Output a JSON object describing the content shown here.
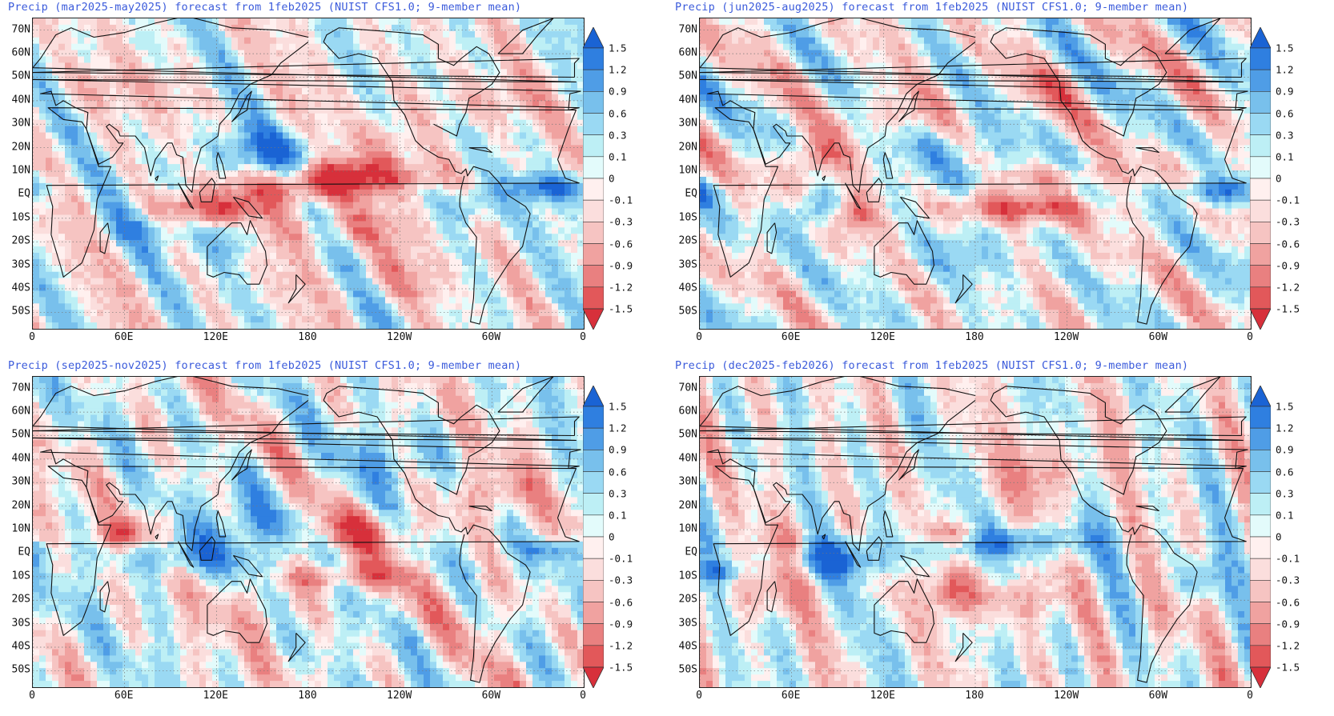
{
  "panels": [
    {
      "id": "mam",
      "title": "Precip (mar2025-may2025) forecast from 1feb2025 (NUIST CFS1.0; 9-member mean)",
      "seed": 11,
      "features": [
        {
          "lon": 110,
          "lat": -6,
          "rlon": 40,
          "rlat": 7,
          "v": -1.5
        },
        {
          "lon": 175,
          "lat": 3,
          "rlon": 35,
          "rlat": 8,
          "v": -1.5
        },
        {
          "lon": 220,
          "lat": 8,
          "rlon": 50,
          "rlat": 7,
          "v": -1.1
        },
        {
          "lon": 228,
          "lat": 20,
          "rlon": 25,
          "rlat": 14,
          "v": -0.7
        },
        {
          "lon": 150,
          "lat": 18,
          "rlon": 40,
          "rlat": 10,
          "v": 1.1
        },
        {
          "lon": 340,
          "lat": 3,
          "rlon": 30,
          "rlat": 6,
          "v": 1.5
        },
        {
          "lon": 75,
          "lat": -12,
          "rlon": 30,
          "rlat": 10,
          "v": 0.8
        },
        {
          "lon": 205,
          "lat": -15,
          "rlon": 45,
          "rlat": 8,
          "v": -0.8
        },
        {
          "lon": 240,
          "lat": -35,
          "rlon": 30,
          "rlat": 10,
          "v": -0.6
        },
        {
          "lon": 130,
          "lat": -18,
          "rlon": 20,
          "rlat": 10,
          "v": 0.7
        },
        {
          "lon": 285,
          "lat": -5,
          "rlon": 15,
          "rlat": 8,
          "v": 0.9
        },
        {
          "lon": 300,
          "lat": 40,
          "rlon": 40,
          "rlat": 10,
          "v": -0.5
        },
        {
          "lon": 60,
          "lat": 45,
          "rlon": 40,
          "rlat": 10,
          "v": -0.4
        }
      ]
    },
    {
      "id": "jja",
      "title": "Precip (jun2025-aug2025) forecast from 1feb2025 (NUIST CFS1.0; 9-member mean)",
      "seed": 23,
      "features": [
        {
          "lon": 75,
          "lat": 15,
          "rlon": 20,
          "rlat": 10,
          "v": -1.1
        },
        {
          "lon": 100,
          "lat": -8,
          "rlon": 15,
          "rlat": 8,
          "v": -1.4
        },
        {
          "lon": 210,
          "lat": -6,
          "rlon": 50,
          "rlat": 6,
          "v": -1.3
        },
        {
          "lon": 225,
          "lat": 8,
          "rlon": 60,
          "rlat": 5,
          "v": -0.8
        },
        {
          "lon": 340,
          "lat": 1,
          "rlon": 30,
          "rlat": 6,
          "v": 1.4
        },
        {
          "lon": 75,
          "lat": -8,
          "rlon": 20,
          "rlat": 8,
          "v": 1.0
        },
        {
          "lon": 160,
          "lat": 18,
          "rlon": 30,
          "rlat": 10,
          "v": 0.8
        },
        {
          "lon": 180,
          "lat": 8,
          "rlon": 25,
          "rlat": 5,
          "v": 1.0
        },
        {
          "lon": 170,
          "lat": -25,
          "rlon": 30,
          "rlat": 10,
          "v": 0.6
        },
        {
          "lon": 130,
          "lat": 35,
          "rlon": 30,
          "rlat": 10,
          "v": -0.5
        },
        {
          "lon": 230,
          "lat": 45,
          "rlon": 25,
          "rlat": 10,
          "v": -0.5
        }
      ]
    },
    {
      "id": "son",
      "title": "Precip (sep2025-nov2025) forecast from 1feb2025 (NUIST CFS1.0; 9-member mean)",
      "seed": 37,
      "features": [
        {
          "lon": 100,
          "lat": -1,
          "rlon": 50,
          "rlat": 8,
          "v": 1.1
        },
        {
          "lon": 60,
          "lat": 8,
          "rlon": 15,
          "rlat": 7,
          "v": -1.2
        },
        {
          "lon": 210,
          "lat": 10,
          "rlon": 50,
          "rlat": 8,
          "v": -0.9
        },
        {
          "lon": 200,
          "lat": -10,
          "rlon": 40,
          "rlat": 6,
          "v": -1.0
        },
        {
          "lon": 155,
          "lat": 12,
          "rlon": 35,
          "rlat": 7,
          "v": 1.0
        },
        {
          "lon": 345,
          "lat": 1,
          "rlon": 25,
          "rlat": 5,
          "v": 1.0
        },
        {
          "lon": 230,
          "lat": 40,
          "rlon": 35,
          "rlat": 12,
          "v": 0.6
        },
        {
          "lon": 140,
          "lat": 25,
          "rlon": 20,
          "rlat": 10,
          "v": 0.6
        },
        {
          "lon": 300,
          "lat": 25,
          "rlon": 30,
          "rlat": 10,
          "v": -0.7
        },
        {
          "lon": 150,
          "lat": -25,
          "rlon": 30,
          "rlat": 10,
          "v": -0.4
        },
        {
          "lon": 300,
          "lat": -20,
          "rlon": 20,
          "rlat": 12,
          "v": -0.4
        }
      ]
    },
    {
      "id": "djf",
      "title": "Precip (dec2025-feb2026) forecast from 1feb2025 (NUIST CFS1.0; 9-member mean)",
      "seed": 53,
      "features": [
        {
          "lon": 90,
          "lat": -2,
          "rlon": 35,
          "rlat": 8,
          "v": 1.4
        },
        {
          "lon": 200,
          "lat": 5,
          "rlon": 55,
          "rlat": 7,
          "v": 1.2
        },
        {
          "lon": 165,
          "lat": 8,
          "rlon": 20,
          "rlat": 5,
          "v": -1.3
        },
        {
          "lon": 165,
          "lat": -15,
          "rlon": 15,
          "rlat": 10,
          "v": -1.1
        },
        {
          "lon": 40,
          "lat": -15,
          "rlon": 20,
          "rlat": 12,
          "v": -0.8
        },
        {
          "lon": 60,
          "lat": 5,
          "rlon": 15,
          "rlat": 8,
          "v": -0.7
        },
        {
          "lon": 225,
          "lat": 35,
          "rlon": 30,
          "rlat": 15,
          "v": -0.8
        },
        {
          "lon": 325,
          "lat": -12,
          "rlon": 15,
          "rlat": 10,
          "v": 1.0
        },
        {
          "lon": 305,
          "lat": -25,
          "rlon": 15,
          "rlat": 15,
          "v": -0.5
        },
        {
          "lon": 12,
          "lat": -8,
          "rlon": 15,
          "rlat": 4,
          "v": 1.0
        },
        {
          "lon": 200,
          "lat": -20,
          "rlon": 40,
          "rlat": 8,
          "v": -0.7
        }
      ]
    }
  ],
  "map_extent": {
    "lon_min": 0,
    "lon_max": 360,
    "lat_min": -57,
    "lat_max": 75
  },
  "lat_labels": [
    {
      "lat": 70,
      "text": "70N"
    },
    {
      "lat": 60,
      "text": "60N"
    },
    {
      "lat": 50,
      "text": "50N"
    },
    {
      "lat": 40,
      "text": "40N"
    },
    {
      "lat": 30,
      "text": "30N"
    },
    {
      "lat": 20,
      "text": "20N"
    },
    {
      "lat": 10,
      "text": "10N"
    },
    {
      "lat": 0,
      "text": "EQ"
    },
    {
      "lat": -10,
      "text": "10S"
    },
    {
      "lat": -20,
      "text": "20S"
    },
    {
      "lat": -30,
      "text": "30S"
    },
    {
      "lat": -40,
      "text": "40S"
    },
    {
      "lat": -50,
      "text": "50S"
    }
  ],
  "lon_labels": [
    {
      "lon": 0,
      "text": "0"
    },
    {
      "lon": 60,
      "text": "60E"
    },
    {
      "lon": 120,
      "text": "120E"
    },
    {
      "lon": 180,
      "text": "180"
    },
    {
      "lon": 240,
      "text": "120W"
    },
    {
      "lon": 300,
      "text": "60W"
    },
    {
      "lon": 360,
      "text": "0"
    }
  ],
  "colorbar": {
    "levels": [
      "-1.5",
      "-1.2",
      "-0.9",
      "-0.6",
      "-0.3",
      "-0.1",
      "0",
      "0.1",
      "0.3",
      "0.6",
      "0.9",
      "1.2",
      "1.5"
    ],
    "colors": [
      "#d7303b",
      "#e2585a",
      "#e98080",
      "#f0a2a0",
      "#f6c4c2",
      "#fbdedd",
      "#fff0ef",
      "#e3fbfb",
      "#bdeff5",
      "#9ad9f3",
      "#78c0ec",
      "#4f9de6",
      "#2f7fe0",
      "#1a63d4"
    ]
  }
}
